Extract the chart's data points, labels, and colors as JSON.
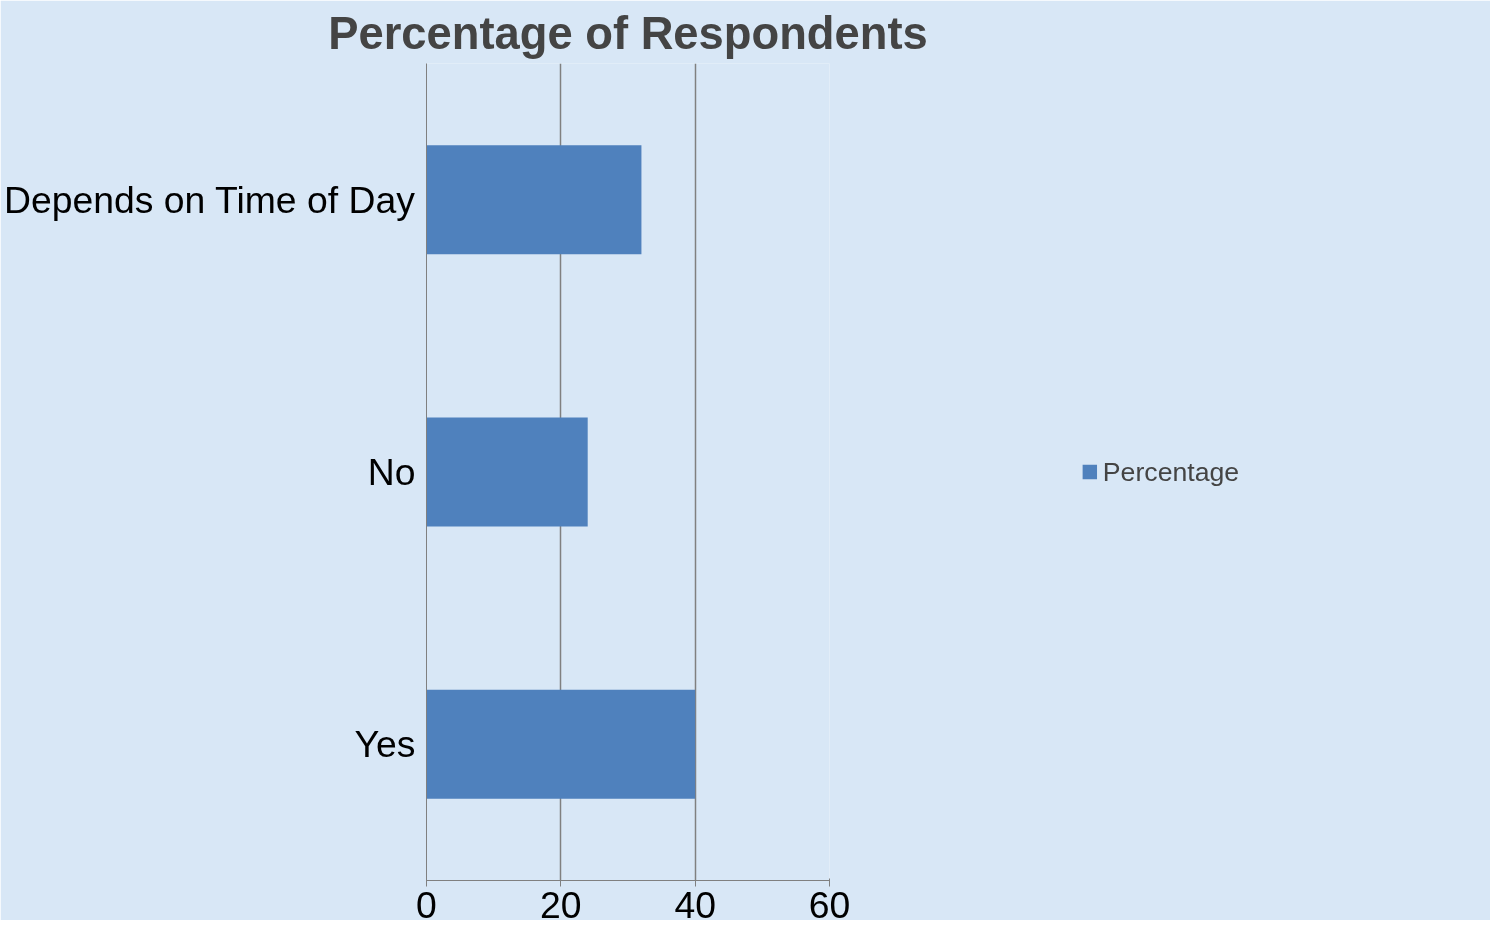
{
  "chart_data": {
    "type": "bar",
    "orientation": "horizontal",
    "title": "Percentage of Respondents",
    "categories": [
      "Depends on Time of Day",
      "No",
      "Yes"
    ],
    "series": [
      {
        "name": "Percentage",
        "color": "#4f81bd",
        "values": [
          32,
          24,
          40
        ]
      }
    ],
    "xlim": [
      0,
      60
    ],
    "xticks": [
      0,
      20,
      40,
      60
    ],
    "grid": "x",
    "legend": "right"
  }
}
